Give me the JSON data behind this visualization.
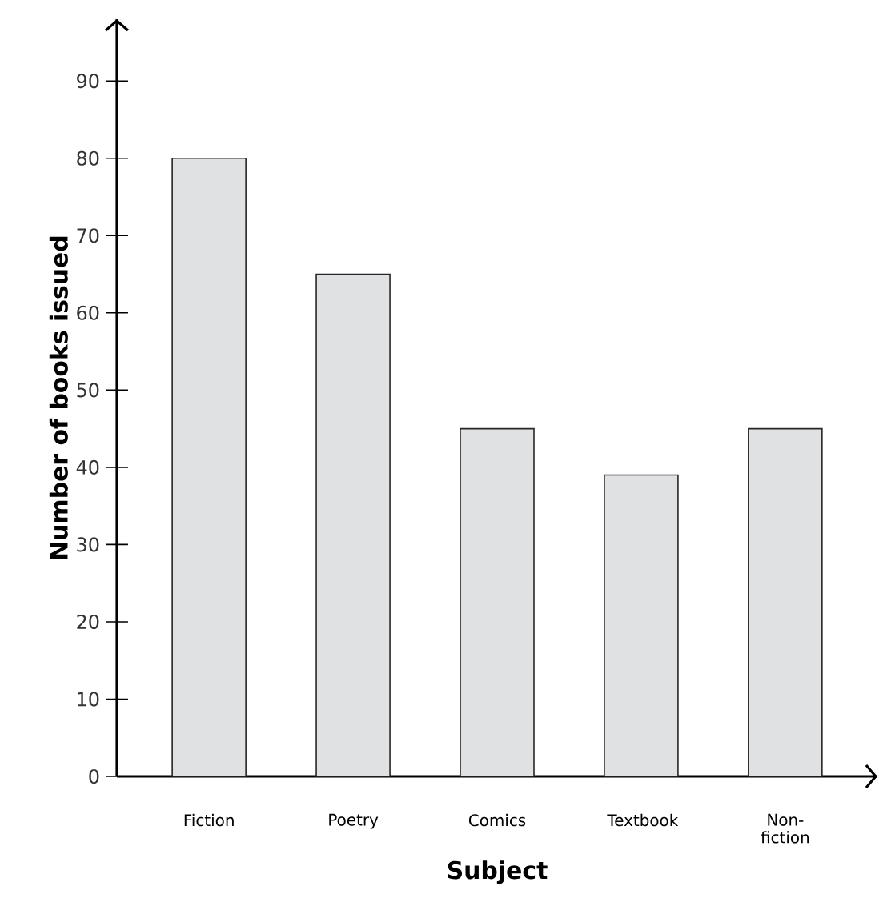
{
  "chart_data": {
    "type": "bar",
    "xlabel": "**Subject**",
    "ylabel": "**Number of books issued**",
    "categories": [
      "Fiction",
      "Poetry",
      "Comics",
      "Textbook",
      "Non-fiction"
    ],
    "values": [
      80,
      65,
      45,
      39,
      45
    ],
    "color": "#e0e1e3",
    "ylim": [
      0,
      98
    ],
    "yticks": [
      0,
      10,
      20,
      30,
      40,
      50,
      60,
      70,
      80,
      90
    ],
    "grid": false
  }
}
